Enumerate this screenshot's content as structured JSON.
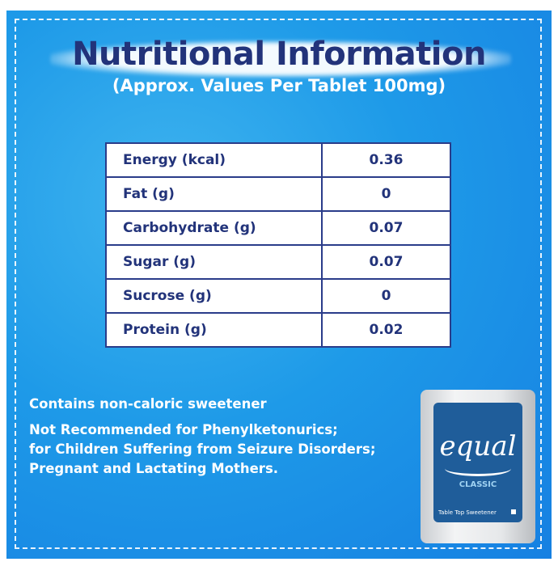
{
  "header": {
    "title": "Nutritional Information",
    "subtitle": "(Approx. Values Per Tablet 100mg)"
  },
  "table": {
    "rows": [
      {
        "name": "Energy (kcal)",
        "value": "0.36"
      },
      {
        "name": "Fat (g)",
        "value": "0"
      },
      {
        "name": "Carbohydrate (g)",
        "value": "0.07"
      },
      {
        "name": "Sugar (g)",
        "value": "0.07"
      },
      {
        "name": "Sucrose (g)",
        "value": "0"
      },
      {
        "name": "Protein (g)",
        "value": "0.02"
      }
    ]
  },
  "notes": {
    "line1": "Contains non-caloric sweetener",
    "line2a": "Not Recommended for Phenylketonurics;",
    "line2b": "for Children Suffering from Seizure Disorders;",
    "line2c": "Pregnant and Lactating Mothers."
  },
  "product": {
    "brand": "equal",
    "variant": "CLASSIC",
    "tagline": "Table Top Sweetener"
  },
  "colors": {
    "background": "#1e9ae8",
    "title": "#22337a",
    "pack": "#1f5d9a"
  }
}
